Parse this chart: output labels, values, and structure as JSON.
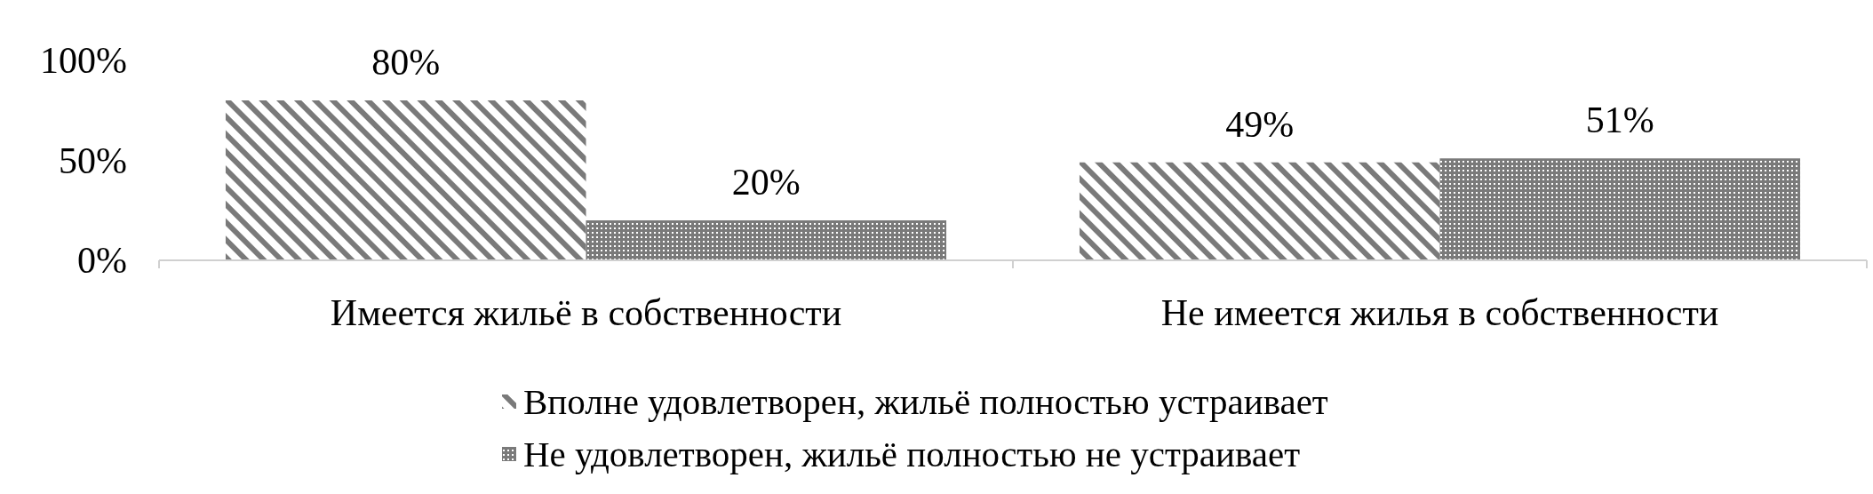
{
  "chart_data": {
    "type": "bar",
    "categories": [
      "Имеется жильё в собственности",
      "Не имеется жилья в собственности"
    ],
    "series": [
      {
        "name": "Вполне удовлетворен, жильё полностью устраивает",
        "color": "#7a7a7a",
        "values": [
          80,
          49
        ],
        "value_labels": [
          "80%",
          "49%"
        ]
      },
      {
        "name": "Не удовлетворен, жильё полностью не устраивает",
        "color": "#7a7a7a",
        "values": [
          20,
          51
        ],
        "value_labels": [
          "20%",
          "51%"
        ]
      }
    ],
    "ylim": [
      0,
      100
    ],
    "yticks": [
      {
        "value": 0,
        "label": "0%"
      },
      {
        "value": 50,
        "label": "50%"
      },
      {
        "value": 100,
        "label": "100%"
      }
    ],
    "grid": false,
    "legend": "bottom"
  }
}
